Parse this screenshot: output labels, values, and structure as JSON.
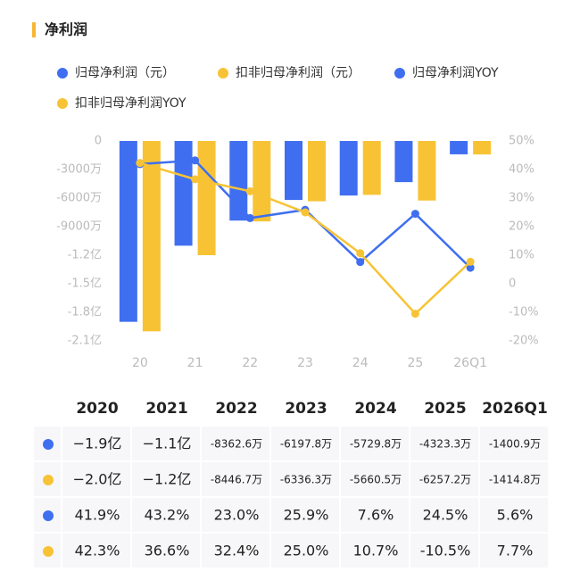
{
  "chart_data": {
    "type": "combo",
    "title": "净利润",
    "categories": [
      "20",
      "21",
      "22",
      "23",
      "24",
      "25",
      "26Q1"
    ],
    "series": [
      {
        "name": "归母净利润（元）",
        "type": "bar",
        "axis": "y",
        "color": "#3f6ff0",
        "values": [
          -190000000,
          -110000000,
          -83626000,
          -61978000,
          -57298000,
          -43233000,
          -14009000
        ],
        "value_labels": [
          "−1.9亿",
          "−1.1亿",
          "-8362.6万",
          "-6197.8万",
          "-5729.8万",
          "-4323.3万",
          "-1400.9万"
        ]
      },
      {
        "name": "扣非归母净利润（元）",
        "type": "bar",
        "axis": "y",
        "color": "#f7c335",
        "values": [
          -200000000,
          -120000000,
          -84467000,
          -63363000,
          -56605000,
          -62572000,
          -14148000
        ],
        "value_labels": [
          "−2.0亿",
          "−1.2亿",
          "-8446.7万",
          "-6336.3万",
          "-5660.5万",
          "-6257.2万",
          "-1414.8万"
        ]
      },
      {
        "name": "归母净利润YOY",
        "type": "line",
        "axis": "y2",
        "color": "#3f6ff0",
        "values": [
          41.9,
          43.2,
          23.0,
          25.9,
          7.6,
          24.5,
          5.6
        ],
        "value_labels": [
          "41.9%",
          "43.2%",
          "23.0%",
          "25.9%",
          "7.6%",
          "24.5%",
          "5.6%"
        ]
      },
      {
        "name": "扣非归母净利润YOY",
        "type": "line",
        "axis": "y2",
        "color": "#f7c335",
        "values": [
          42.3,
          36.6,
          32.4,
          25.0,
          10.7,
          -10.5,
          7.7
        ],
        "value_labels": [
          "42.3%",
          "36.6%",
          "32.4%",
          "25.0%",
          "10.7%",
          "-10.5%",
          "7.7%"
        ]
      }
    ],
    "ylim": [
      -210000000,
      0
    ],
    "yticks": [
      0,
      {
        "value": -30000000,
        "label": "-3000万"
      },
      {
        "value": -60000000,
        "label": "-6000万"
      },
      {
        "value": -90000000,
        "label": "-9000万"
      },
      {
        "value": -120000000,
        "label": "-1.2亿"
      },
      {
        "value": -150000000,
        "label": "-1.5亿"
      },
      {
        "value": -180000000,
        "label": "-1.8亿"
      },
      {
        "value": -210000000,
        "label": "-2.1亿"
      }
    ],
    "y2lim": [
      -20,
      50
    ],
    "y2ticks": [
      {
        "value": 50,
        "label": "50%"
      },
      {
        "value": 40,
        "label": "40%"
      },
      {
        "value": 30,
        "label": "30%"
      },
      {
        "value": 20,
        "label": "20%"
      },
      {
        "value": 10,
        "label": "10%"
      },
      0,
      {
        "value": -10,
        "label": "-10%"
      },
      {
        "value": -20,
        "label": "-20%"
      }
    ],
    "table_columns": [
      "2020",
      "2021",
      "2022",
      "2023",
      "2024",
      "2025",
      "2026Q1"
    ]
  }
}
